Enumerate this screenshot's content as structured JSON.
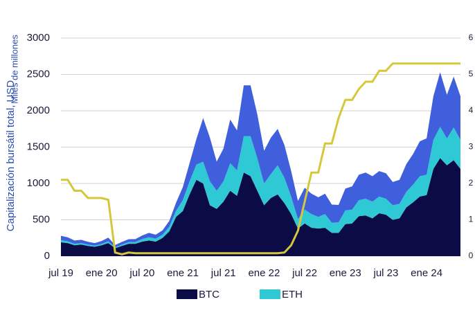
{
  "chart_data": {
    "type": "stacked-area",
    "y_label": "Capitalización bursátil total, USD",
    "y2_label": "Miles de millones",
    "categories": [
      "jul 19",
      null,
      null,
      null,
      null,
      null,
      "ene 20",
      null,
      null,
      null,
      null,
      null,
      "jul 20",
      null,
      null,
      null,
      null,
      null,
      "ene 21",
      null,
      null,
      null,
      null,
      null,
      "jul 21",
      null,
      null,
      null,
      null,
      null,
      "ene 22",
      null,
      null,
      null,
      null,
      null,
      "jul 22",
      null,
      null,
      null,
      null,
      null,
      "ene 23",
      null,
      null,
      null,
      null,
      null,
      "jul 23",
      null,
      null,
      null,
      null,
      null,
      "ene 24",
      null,
      null,
      null,
      null,
      null
    ],
    "series": [
      {
        "name": "BTC",
        "color": "#0b0b45",
        "values": [
          190,
          180,
          150,
          160,
          140,
          130,
          150,
          180,
          110,
          140,
          170,
          170,
          200,
          215,
          200,
          250,
          340,
          540,
          620,
          850,
          1050,
          1000,
          700,
          650,
          750,
          900,
          830,
          1150,
          1100,
          900,
          700,
          800,
          850,
          730,
          580,
          380,
          450,
          390,
          380,
          390,
          320,
          320,
          440,
          450,
          550,
          560,
          520,
          590,
          570,
          500,
          520,
          670,
          740,
          820,
          840,
          1200,
          1350,
          1250,
          1320,
          1200
        ]
      },
      {
        "name": "ETH",
        "color": "#2ec9d4",
        "values": [
          30,
          25,
          20,
          20,
          18,
          15,
          18,
          25,
          13,
          20,
          23,
          25,
          35,
          45,
          40,
          45,
          65,
          85,
          150,
          180,
          210,
          300,
          330,
          250,
          280,
          380,
          350,
          500,
          550,
          450,
          300,
          330,
          400,
          350,
          240,
          130,
          190,
          190,
          160,
          190,
          140,
          145,
          190,
          190,
          220,
          230,
          230,
          230,
          220,
          200,
          200,
          215,
          245,
          280,
          280,
          400,
          430,
          370,
          450,
          400
        ]
      },
      {
        "color": "#3f5fdc",
        "values": [
          60,
          55,
          45,
          45,
          40,
          35,
          40,
          50,
          30,
          35,
          40,
          40,
          50,
          60,
          55,
          60,
          80,
          110,
          180,
          250,
          350,
          600,
          600,
          400,
          450,
          600,
          550,
          700,
          700,
          600,
          450,
          500,
          500,
          450,
          350,
          250,
          300,
          280,
          270,
          280,
          250,
          240,
          300,
          320,
          350,
          360,
          350,
          350,
          350,
          320,
          330,
          380,
          420,
          480,
          500,
          600,
          750,
          600,
          700,
          600
        ]
      },
      {
        "color": "#d4c83a",
        "axis": "y2",
        "line": true,
        "values": [
          2.1,
          2.1,
          1.8,
          1.8,
          1.6,
          1.6,
          1.6,
          1.55,
          0.1,
          0.05,
          0.1,
          0.08,
          0.08,
          0.08,
          0.08,
          0.08,
          0.08,
          0.08,
          0.08,
          0.08,
          0.08,
          0.08,
          0.08,
          0.08,
          0.08,
          0.08,
          0.08,
          0.08,
          0.08,
          0.08,
          0.08,
          0.08,
          0.08,
          0.1,
          0.3,
          0.7,
          1.5,
          2.3,
          2.3,
          3.1,
          3.1,
          3.8,
          4.3,
          4.3,
          4.6,
          4.8,
          4.8,
          5.1,
          5.1,
          5.3,
          5.3,
          5.3,
          5.3,
          5.3,
          5.3,
          5.3,
          5.3,
          5.3,
          5.3,
          5.3
        ]
      }
    ],
    "ylim": [
      0,
      3000
    ],
    "yticks": [
      0,
      500,
      1000,
      1500,
      2000,
      2500,
      3000
    ],
    "y2lim": [
      0,
      6
    ],
    "y2ticks": [
      0,
      1,
      2,
      3,
      4,
      5,
      6
    ],
    "grid": true,
    "legend": "bottom"
  }
}
